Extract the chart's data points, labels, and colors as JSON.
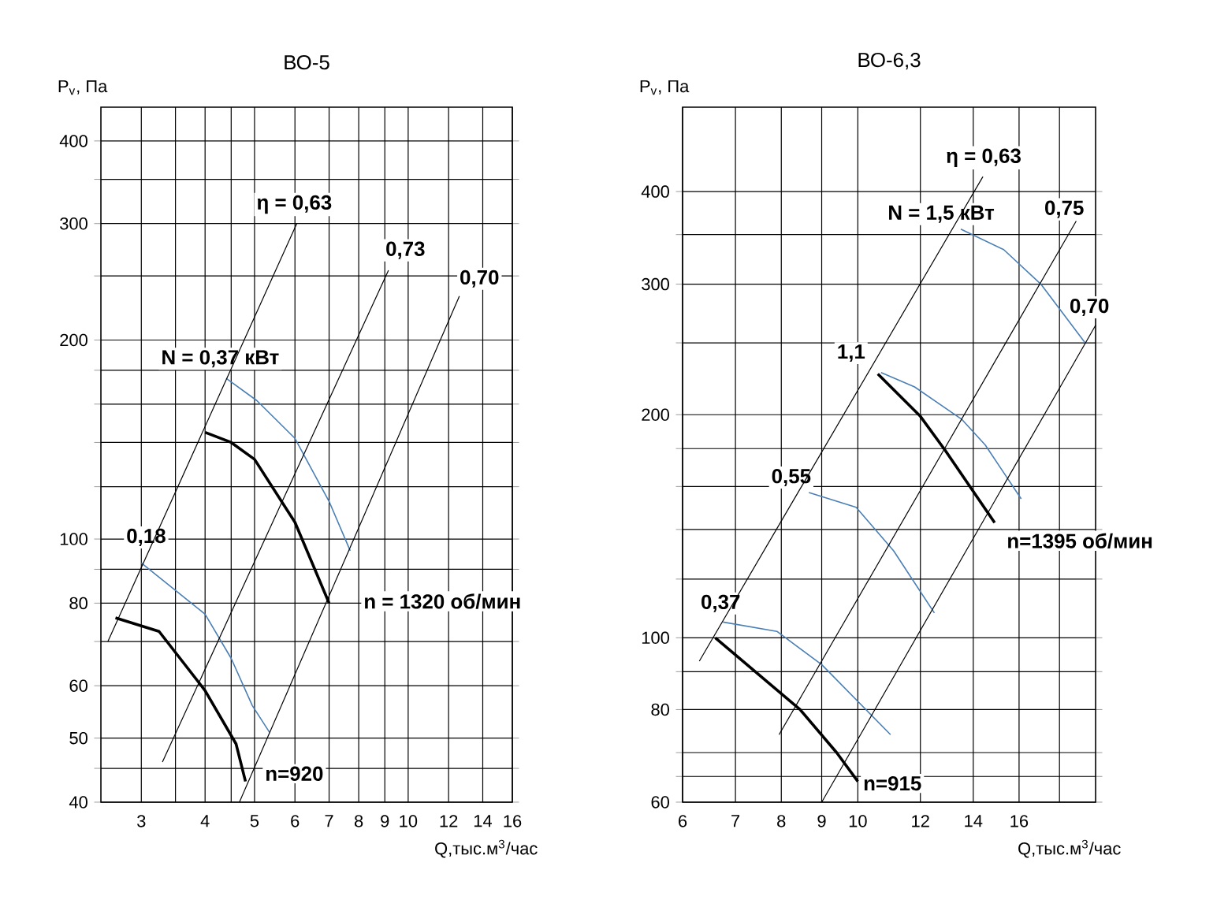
{
  "chart_data": [
    {
      "type": "line",
      "title": "ВО-5",
      "xlabel": "Q,тыс.м$^{3}$/час",
      "ylabel": "P$_{v}$, Па",
      "log": "xy",
      "grid": true,
      "xlim": [
        2.5,
        16
      ],
      "ylim": [
        40,
        450
      ],
      "xticks": [
        3,
        {
          "value": 3.5,
          "label": null
        },
        4,
        {
          "value": 4.5,
          "label": null
        },
        5,
        6,
        7,
        8,
        9,
        10,
        12,
        14,
        16
      ],
      "yticks": [
        40,
        {
          "value": 45,
          "label": null
        },
        50,
        60,
        {
          "value": 70,
          "label": null
        },
        80,
        {
          "value": 90,
          "label": null
        },
        100,
        {
          "value": 120,
          "label": null
        },
        {
          "value": 140,
          "label": null
        },
        {
          "value": 160,
          "label": null
        },
        {
          "value": 180,
          "label": null
        },
        200,
        {
          "value": 250,
          "label": null
        },
        300,
        {
          "value": 350,
          "label": null
        },
        400
      ],
      "series": [
        {
          "color": "#000000",
          "x": [
            4.0,
            4.5,
            5.0,
            6.0,
            7.0
          ],
          "values": [
            145,
            140,
            132,
            106,
            80
          ]
        },
        {
          "color": "#4a7fb5",
          "x": [
            4.4,
            5.05,
            6.0,
            7.0,
            7.7
          ],
          "values": [
            175,
            162,
            142,
            114,
            96
          ]
        },
        {
          "color": "#000000",
          "x": [
            2.67,
            3.25,
            4.0,
            4.6,
            4.8
          ],
          "values": [
            76,
            72.5,
            59,
            49,
            43
          ]
        },
        {
          "color": "#4a7fb5",
          "x": [
            3.0,
            4.0,
            4.5,
            4.95,
            5.35
          ],
          "values": [
            92,
            77,
            66,
            56,
            51
          ]
        },
        {
          "color": "#000000",
          "x": [
            2.58,
            6.05
          ],
          "values": [
            70,
            300
          ]
        },
        {
          "color": "#000000",
          "x": [
            3.3,
            9.15
          ],
          "values": [
            46,
            255
          ]
        },
        {
          "color": "#000000",
          "x": [
            4.67,
            12.6
          ],
          "values": [
            40,
            233
          ]
        }
      ],
      "annotations": [
        "η = 0,63",
        "0,73",
        "0,70",
        "N = 0,37 кВт",
        "0,18",
        "n = 1320 об/мин",
        "n=920"
      ]
    },
    {
      "type": "line",
      "title": "ВО-6,3",
      "xlabel": "Q,тыс.м$^{3}$/час",
      "ylabel": "P$_{v}$, Па",
      "log": "xy",
      "grid": true,
      "xlim": [
        6,
        20
      ],
      "ylim": [
        60,
        520
      ],
      "xticks": [
        6,
        7,
        8,
        9,
        10,
        12,
        14,
        16,
        {
          "value": 18,
          "label": null
        }
      ],
      "yticks": [
        60,
        {
          "value": 65,
          "label": null
        },
        {
          "value": 70,
          "label": null
        },
        80,
        {
          "value": 90,
          "label": null
        },
        100,
        {
          "value": 120,
          "label": null
        },
        {
          "value": 140,
          "label": null
        },
        {
          "value": 160,
          "label": null
        },
        {
          "value": 180,
          "label": null
        },
        200,
        {
          "value": 250,
          "label": null
        },
        300,
        {
          "value": 350,
          "label": null
        },
        400
      ],
      "series": [
        {
          "color": "#4a7fb5",
          "x": [
            13.5,
            15.3,
            17.05,
            19.4
          ],
          "values": [
            356,
            334,
            300,
            250
          ]
        },
        {
          "color": "#000000",
          "x": [
            10.6,
            12.0,
            12.9,
            14.9
          ],
          "values": [
            227,
            199,
            179,
            143
          ]
        },
        {
          "color": "#4a7fb5",
          "x": [
            10.7,
            11.8,
            13.55,
            14.5,
            16.1
          ],
          "values": [
            228,
            218,
            197,
            182,
            154
          ]
        },
        {
          "color": "#4a7fb5",
          "x": [
            8.67,
            9.95,
            11.1,
            12.5
          ],
          "values": [
            157,
            150,
            131,
            108
          ]
        },
        {
          "color": "#000000",
          "x": [
            6.6,
            8.45,
            9.4,
            10.0
          ],
          "values": [
            100,
            80,
            70,
            64
          ]
        },
        {
          "color": "#4a7fb5",
          "x": [
            6.75,
            7.9,
            9.0,
            11.0
          ],
          "values": [
            105,
            102,
            92,
            74
          ]
        },
        {
          "color": "#000000",
          "x": [
            6.3,
            14.4
          ],
          "values": [
            93,
            419
          ]
        },
        {
          "color": "#000000",
          "x": [
            7.95,
            18.9
          ],
          "values": [
            74,
            365
          ]
        },
        {
          "color": "#000000",
          "x": [
            9.0,
            20.0
          ],
          "values": [
            60,
            264
          ]
        }
      ],
      "annotations": [
        "η = 0,63",
        "N = 1,5 кВт",
        "0,75",
        "0,70",
        "1,1",
        "0,55",
        "0,37",
        "n=1395 об/мин",
        "n=915"
      ]
    }
  ]
}
